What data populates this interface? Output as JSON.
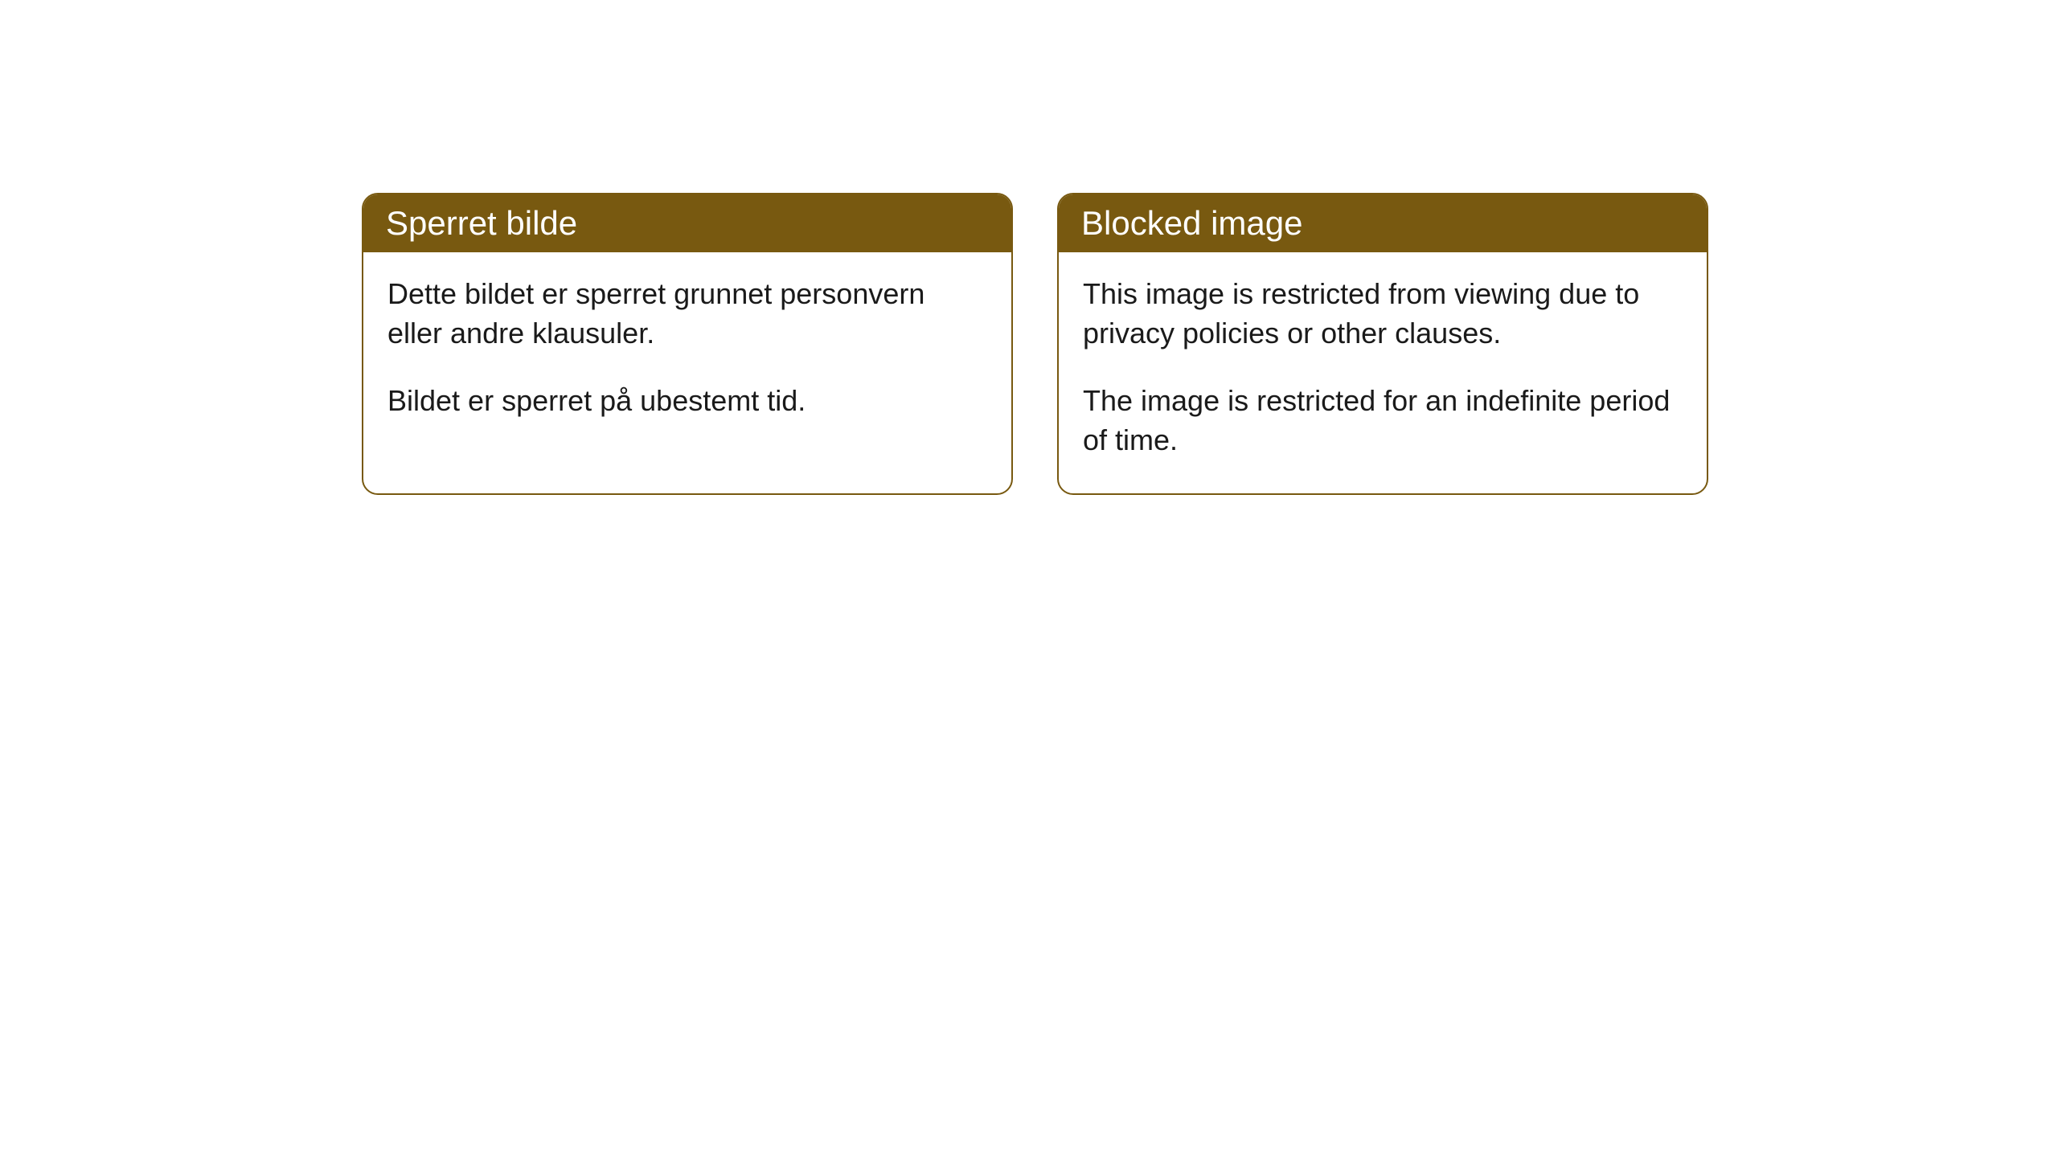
{
  "cards": [
    {
      "title": "Sperret bilde",
      "paragraph1": "Dette bildet er sperret grunnet personvern eller andre klausuler.",
      "paragraph2": "Bildet er sperret på ubestemt tid."
    },
    {
      "title": "Blocked image",
      "paragraph1": "This image is restricted from viewing due to privacy policies or other clauses.",
      "paragraph2": "The image is restricted for an indefinite period of time."
    }
  ],
  "styling": {
    "header_background_color": "#785910",
    "header_text_color": "#ffffff",
    "border_color": "#785910",
    "body_background_color": "#ffffff",
    "body_text_color": "#1a1a1a",
    "border_radius": 20,
    "header_font_size": 42,
    "body_font_size": 36
  }
}
